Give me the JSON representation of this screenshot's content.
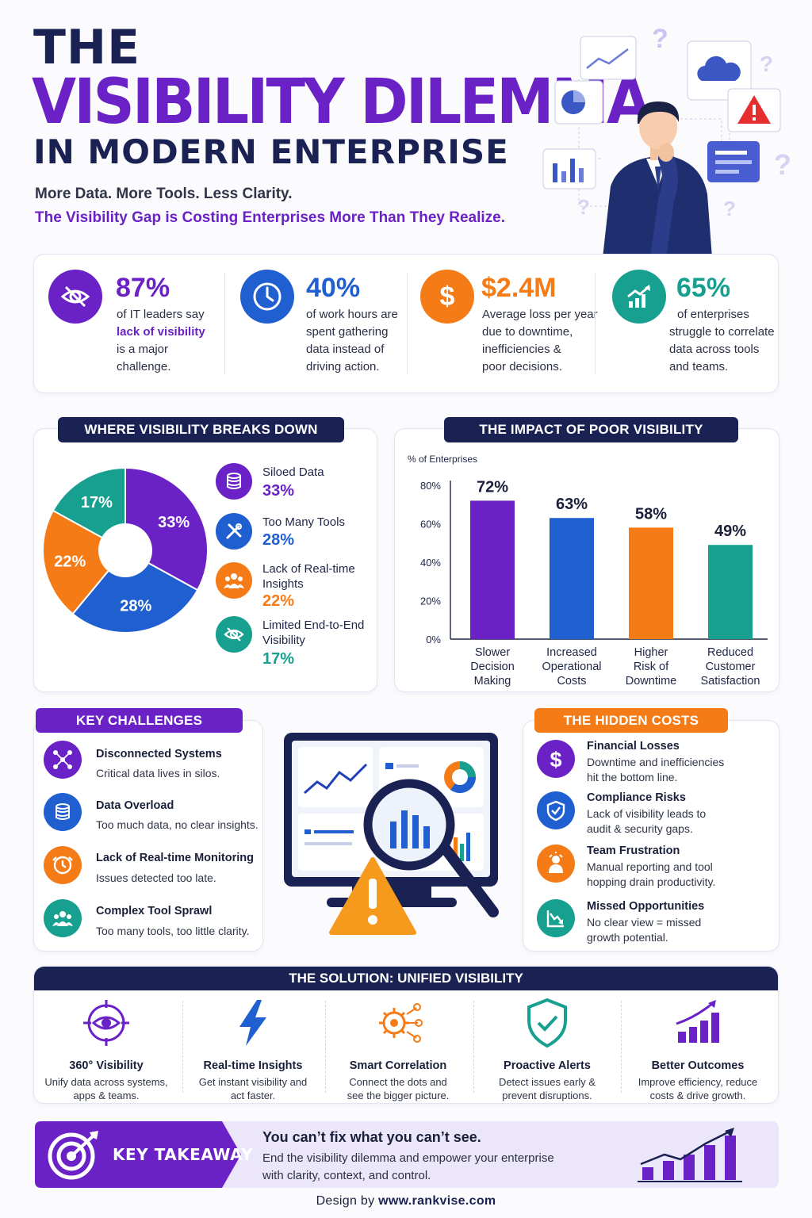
{
  "header": {
    "line1": "THE",
    "line2": "VISIBILITY DILEMMA",
    "line3": "IN MODERN ENTERPRISE",
    "tagline": "More Data. More Tools. Less Clarity.",
    "tagline2": "The Visibility Gap is Costing Enterprises More Than They Realize."
  },
  "stats": [
    {
      "value": "87%",
      "line1": "of IT leaders say",
      "highlight": "lack of visibility",
      "line3": "is a major",
      "line4": "challenge.",
      "icon": "eye-slash-icon",
      "color": "#6a22c6"
    },
    {
      "value": "40%",
      "line1": "of work hours are",
      "line2": "spent gathering",
      "line3": "data instead of",
      "line4": "driving action.",
      "icon": "clock-icon",
      "color": "#1f5fcf"
    },
    {
      "value": "$2.4M",
      "line1": "Average loss per year",
      "line2": "due to downtime,",
      "line3": "inefficiencies &",
      "line4": "poor decisions.",
      "icon": "dollar-icon",
      "color": "#f47b16"
    },
    {
      "value": "65%",
      "line1": "of enterprises",
      "line2": "struggle to correlate",
      "line3": "data across tools",
      "line4": "and teams.",
      "icon": "growth-chart-icon",
      "color": "#17a08f"
    }
  ],
  "breakdown": {
    "title": "WHERE VISIBILITY BREAKS DOWN",
    "items": [
      {
        "label": "Siloed Data",
        "pct": "33%",
        "icon": "database-icon",
        "color": "#6a22c6"
      },
      {
        "label": "Too Many Tools",
        "pct": "28%",
        "icon": "tools-icon",
        "color": "#1f5fcf"
      },
      {
        "label_l1": "Lack of Real-time",
        "label_l2": "Insights",
        "pct": "22%",
        "icon": "team-icon",
        "color": "#f47b16"
      },
      {
        "label_l1": "Limited End-to-End",
        "label_l2": "Visibility",
        "pct": "17%",
        "icon": "eye-slash-icon",
        "color": "#17a08f"
      }
    ]
  },
  "impact": {
    "title": "THE IMPACT OF POOR VISIBILITY"
  },
  "chart_data": [
    {
      "type": "pie",
      "title": "WHERE VISIBILITY BREAKS DOWN",
      "categories": [
        "Siloed Data",
        "Too Many Tools",
        "Lack of Real-time Insights",
        "Limited End-to-End Visibility"
      ],
      "values": [
        33,
        28,
        22,
        17
      ],
      "labels": [
        "33%",
        "28%",
        "22%",
        "17%"
      ],
      "colors": [
        "#6a22c6",
        "#1f5fcf",
        "#f47b16",
        "#17a08f"
      ]
    },
    {
      "type": "bar",
      "title": "THE IMPACT OF POOR VISIBILITY",
      "ylabel": "% of Enterprises",
      "categories": [
        [
          "Slower",
          "Decision",
          "Making"
        ],
        [
          "Increased",
          "Operational",
          "Costs"
        ],
        [
          "Higher",
          "Risk of",
          "Downtime"
        ],
        [
          "Reduced",
          "Customer",
          "Satisfaction"
        ]
      ],
      "values": [
        72,
        63,
        58,
        49
      ],
      "labels": [
        "72%",
        "63%",
        "58%",
        "49%"
      ],
      "colors": [
        "#6a22c6",
        "#1f5fcf",
        "#f47b16",
        "#17a08f"
      ],
      "yticks": [
        "0%",
        "20%",
        "40%",
        "60%",
        "80%"
      ],
      "ylim": [
        0,
        80
      ]
    }
  ],
  "challenges": {
    "title": "KEY CHALLENGES",
    "items": [
      {
        "title": "Disconnected Systems",
        "desc": "Critical data lives in silos.",
        "icon": "network-icon",
        "color": "#6a22c6"
      },
      {
        "title": "Data Overload",
        "desc": "Too much data, no clear insights.",
        "icon": "database-icon",
        "color": "#1f5fcf"
      },
      {
        "title": "Lack of Real-time Monitoring",
        "desc": "Issues detected too late.",
        "icon": "clock-alert-icon",
        "color": "#f47b16"
      },
      {
        "title": "Complex Tool Sprawl",
        "desc": "Too many tools, too little clarity.",
        "icon": "team-icon",
        "color": "#17a08f"
      }
    ]
  },
  "hidden_costs": {
    "title": "THE HIDDEN COSTS",
    "items": [
      {
        "title": "Financial Losses",
        "desc1": "Downtime and inefficiencies",
        "desc2": "hit the bottom line.",
        "icon": "dollar-icon",
        "color": "#6a22c6"
      },
      {
        "title": "Compliance Risks",
        "desc1": "Lack of visibility leads to",
        "desc2": "audit & security gaps.",
        "icon": "shield-check-icon",
        "color": "#1f5fcf"
      },
      {
        "title": "Team Frustration",
        "desc1": "Manual reporting and tool",
        "desc2": "hopping drain productivity.",
        "icon": "frustrated-person-icon",
        "color": "#f47b16"
      },
      {
        "title": "Missed Opportunities",
        "desc1": "No clear view = missed",
        "desc2": "growth potential.",
        "icon": "declining-chart-icon",
        "color": "#17a08f"
      }
    ]
  },
  "solution": {
    "title": "THE SOLUTION: UNIFIED VISIBILITY",
    "items": [
      {
        "title": "360° Visibility",
        "desc1": "Unify data across systems,",
        "desc2": "apps & teams.",
        "icon": "target-eye-icon"
      },
      {
        "title": "Real-time Insights",
        "desc1": "Get instant visibility and",
        "desc2": "act faster.",
        "icon": "lightning-icon"
      },
      {
        "title": "Smart Correlation",
        "desc1": "Connect the dots and",
        "desc2": "see the bigger picture.",
        "icon": "gear-network-icon"
      },
      {
        "title": "Proactive Alerts",
        "desc1": "Detect issues early &",
        "desc2": "prevent disruptions.",
        "icon": "shield-check-icon"
      },
      {
        "title": "Better Outcomes",
        "desc1": "Improve efficiency, reduce",
        "desc2": "costs & drive growth.",
        "icon": "growth-bars-icon"
      }
    ]
  },
  "takeaway": {
    "label": "KEY TAKEAWAY",
    "headline": "You can’t fix what you can’t see.",
    "line1": "End the visibility dilemma and empower your enterprise",
    "line2": "with clarity, context, and control."
  },
  "footer": {
    "prefix": "Design by ",
    "site": "www.rankvise.com"
  }
}
